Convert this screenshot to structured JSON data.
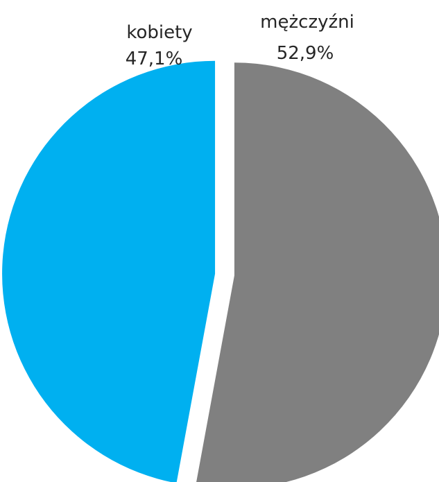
{
  "chart_data": {
    "type": "pie",
    "slices": [
      {
        "label": "kobiety",
        "value": 47.1,
        "value_text": "47,1%",
        "color": "#00b0f0"
      },
      {
        "label": "mężczyźni",
        "value": 52.9,
        "value_text": "52,9%",
        "color": "#808080"
      }
    ],
    "title": "",
    "legend": "none",
    "exploded": true
  }
}
